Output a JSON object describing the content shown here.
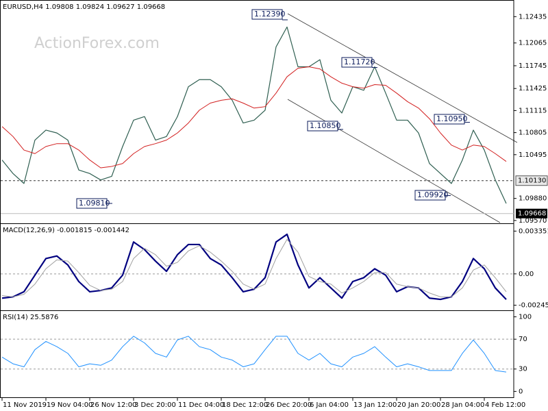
{
  "chart_data": [
    {
      "type": "line",
      "title": "EURUSD,H4 1.09808 1.09824 1.09627 1.09668",
      "watermark": "ActionForex.com",
      "categories": [
        "11 Nov 2019",
        null,
        null,
        null,
        "19 Nov 04:00",
        null,
        null,
        null,
        "26 Nov 12:00",
        null,
        null,
        null,
        "3 Dec 20:00",
        null,
        null,
        null,
        "11 Dec 04:00",
        null,
        null,
        null,
        "18 Dec 12:00",
        null,
        null,
        null,
        "26 Dec 20:00",
        null,
        null,
        null,
        "6 Jan 04:00",
        null,
        null,
        null,
        "13 Jan 12:00",
        null,
        null,
        null,
        "20 Jan 20:00",
        null,
        null,
        null,
        "28 Jan 04:00",
        null,
        null,
        null,
        "4 Feb 12:00",
        null,
        null
      ],
      "series": [
        {
          "color": "#2e5e50",
          "width": 1.2,
          "values": [
            1.1042,
            1.1023,
            1.1009,
            1.107,
            1.1084,
            1.108,
            1.107,
            1.1028,
            1.1023,
            1.1014,
            1.1019,
            1.1061,
            1.1098,
            1.1103,
            1.107,
            1.1075,
            1.1103,
            1.1145,
            1.1155,
            1.1155,
            1.1145,
            1.1126,
            1.1094,
            1.1098,
            1.1112,
            1.1201,
            1.1229,
            1.1173,
            1.1173,
            1.1183,
            1.1126,
            1.1108,
            1.1145,
            1.114,
            1.1173,
            1.1136,
            1.1098,
            1.1098,
            1.108,
            1.1037,
            1.1023,
            1.1009,
            1.1042,
            1.1084,
            1.1056,
            1.1014,
            1.0981
          ]
        },
        {
          "color": "#d21e1e",
          "width": 1,
          "values": [
            1.1089,
            1.1075,
            1.1056,
            1.1051,
            1.1061,
            1.1065,
            1.1065,
            1.1056,
            1.1042,
            1.1031,
            1.1033,
            1.1037,
            1.1051,
            1.1061,
            1.1065,
            1.107,
            1.108,
            1.1094,
            1.1112,
            1.1122,
            1.1126,
            1.1128,
            1.1122,
            1.1115,
            1.1117,
            1.1136,
            1.1159,
            1.1171,
            1.1173,
            1.117,
            1.1159,
            1.115,
            1.1145,
            1.1143,
            1.1148,
            1.1147,
            1.1136,
            1.1124,
            1.1115,
            1.11,
            1.108,
            1.1063,
            1.1056,
            1.1063,
            1.1061,
            1.1051,
            1.104
          ]
        }
      ],
      "ylim": [
        1.0954,
        1.1264
      ],
      "yticks": [
        1.12435,
        1.12065,
        1.11745,
        1.11425,
        1.11115,
        1.10805,
        1.10495,
        {
          "value": 1.0988,
          "label": "1.09880"
        },
        {
          "value": 1.0957,
          "label": "1.09570"
        }
      ],
      "reference_line": {
        "value": 1.1013,
        "label": "1.10130"
      },
      "last_price": 1.09668,
      "annotations": [
        {
          "value": 1.1239,
          "label": "1.12390"
        },
        {
          "value": 1.1172,
          "label": "1.11720"
        },
        {
          "value": 1.1085,
          "label": "1.10850"
        },
        {
          "value": 1.1095,
          "label": "1.10950"
        },
        {
          "value": 1.0992,
          "label": "1.09920"
        },
        {
          "value": 1.0981,
          "label": "1.09810"
        }
      ]
    },
    {
      "type": "line",
      "title": "MACD(12,26,9) -0.001815 -0.001442",
      "series": [
        {
          "color": "#000080",
          "width": 2.2,
          "values": [
            -0.0019,
            -0.0018,
            -0.0014,
            -0.0001,
            0.0012,
            0.0014,
            0.0007,
            -0.0006,
            -0.0014,
            -0.0013,
            -0.0011,
            -0.0001,
            0.0025,
            0.0019,
            0.001,
            0.0002,
            0.0015,
            0.0023,
            0.0023,
            0.0012,
            0.0007,
            -0.0003,
            -0.0014,
            -0.0012,
            -0.0003,
            0.0025,
            0.0031,
            0.0007,
            -0.0011,
            -0.0003,
            -0.0011,
            -0.0019,
            -0.0006,
            -0.0003,
            0.0004,
            -0.0001,
            -0.0014,
            -0.001,
            -0.0011,
            -0.0019,
            -0.002,
            -0.0018,
            -0.0006,
            0.0012,
            0.0004,
            -0.0011,
            -0.002
          ]
        },
        {
          "color": "#a0a0a0",
          "width": 1,
          "values": [
            -0.0017,
            -0.0018,
            -0.0016,
            -0.0008,
            0.0004,
            0.0011,
            0.001,
            0.0001,
            -0.0009,
            -0.0013,
            -0.0012,
            -0.0006,
            0.0012,
            0.002,
            0.0015,
            0.0006,
            0.0009,
            0.0018,
            0.0022,
            0.0017,
            0.001,
            0.0002,
            -0.0008,
            -0.0012,
            -0.0008,
            0.0012,
            0.0027,
            0.0017,
            -0.0002,
            -0.0006,
            -0.0008,
            -0.0015,
            -0.0011,
            -0.0006,
            0.0001,
            0.0001,
            -0.0008,
            -0.001,
            -0.0011,
            -0.0015,
            -0.0018,
            -0.0018,
            -0.0011,
            0.0003,
            0.0007,
            -0.0003,
            -0.0014
          ]
        }
      ],
      "ylim": [
        -0.0028,
        0.0038
      ],
      "yticks": [
        0.003351,
        {
          "value": 0,
          "label": "0.00"
        },
        -0.002454
      ],
      "levels": [
        0
      ]
    },
    {
      "type": "line",
      "title": "RSI(14) 25.5876",
      "series": [
        {
          "color": "#1e90ff",
          "width": 1,
          "values": [
            46,
            37,
            33,
            56,
            67,
            60,
            51,
            33,
            37,
            35,
            42,
            60,
            74,
            65,
            51,
            46,
            69,
            74,
            60,
            56,
            46,
            42,
            33,
            37,
            56,
            74,
            74,
            51,
            42,
            51,
            37,
            33,
            46,
            51,
            60,
            46,
            33,
            37,
            33,
            28,
            28,
            28,
            51,
            69,
            51,
            28,
            26
          ]
        }
      ],
      "ylim": [
        -7,
        106
      ],
      "yticks": [
        100,
        70,
        30,
        0
      ],
      "levels": [
        70,
        30
      ]
    }
  ]
}
